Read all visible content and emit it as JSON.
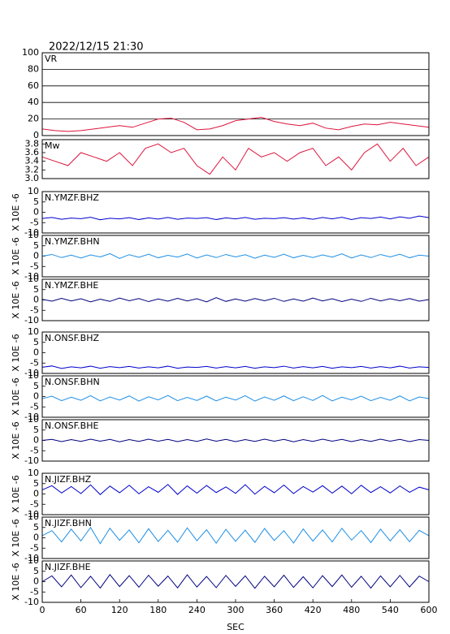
{
  "chart_data": [
    {
      "type": "line",
      "title": "2022/12/15 21:30",
      "label": "VR",
      "color": "#dc143c",
      "grid": true,
      "x": [
        0,
        20,
        40,
        60,
        80,
        100,
        120,
        140,
        160,
        180,
        200,
        220,
        240,
        260,
        280,
        300,
        320,
        340,
        360,
        380,
        400,
        420,
        440,
        460,
        480,
        500,
        520,
        540,
        560,
        580,
        600
      ],
      "values": [
        8,
        6,
        5,
        6,
        8,
        10,
        12,
        10,
        15,
        20,
        21,
        16,
        7,
        8,
        12,
        18,
        20,
        22,
        17,
        14,
        12,
        15,
        9,
        7,
        11,
        14,
        13,
        16,
        14,
        12,
        10
      ],
      "xlim": [
        0,
        600
      ],
      "ylim": [
        0,
        100
      ],
      "yticks": [
        0,
        20,
        40,
        60,
        80,
        100
      ]
    },
    {
      "type": "line",
      "label": "Mw",
      "color": "#dc143c",
      "x": [
        0,
        20,
        40,
        60,
        80,
        100,
        120,
        140,
        160,
        180,
        200,
        220,
        240,
        260,
        280,
        300,
        320,
        340,
        360,
        380,
        400,
        420,
        440,
        460,
        480,
        500,
        520,
        540,
        560,
        580,
        600
      ],
      "values": [
        3.5,
        3.4,
        3.3,
        3.6,
        3.5,
        3.4,
        3.6,
        3.3,
        3.7,
        3.8,
        3.6,
        3.7,
        3.3,
        3.1,
        3.5,
        3.2,
        3.7,
        3.5,
        3.6,
        3.4,
        3.6,
        3.7,
        3.3,
        3.5,
        3.2,
        3.6,
        3.8,
        3.4,
        3.7,
        3.3,
        3.5
      ],
      "xlim": [
        0,
        600
      ],
      "ylim": [
        3.0,
        3.9
      ],
      "yticks": [
        {
          "value": 3,
          "label": "3.0"
        },
        3.2,
        3.4,
        3.6,
        3.8
      ]
    },
    {
      "type": "line",
      "label": "N.YMZF.BHZ",
      "ylabel": "X 10E -6",
      "color": "#0000cd",
      "x": [
        0,
        15,
        30,
        45,
        60,
        75,
        90,
        105,
        120,
        135,
        150,
        165,
        180,
        195,
        210,
        225,
        240,
        255,
        270,
        285,
        300,
        315,
        330,
        345,
        360,
        375,
        390,
        405,
        420,
        435,
        450,
        465,
        480,
        495,
        510,
        525,
        540,
        555,
        570,
        585,
        600
      ],
      "values": [
        -3,
        -2.5,
        -3.4,
        -2.8,
        -3.1,
        -2.4,
        -3.6,
        -2.9,
        -3.2,
        -2.6,
        -3.5,
        -2.7,
        -3.3,
        -2.5,
        -3.4,
        -2.8,
        -3,
        -2.6,
        -3.5,
        -2.7,
        -3.2,
        -2.5,
        -3.4,
        -2.9,
        -3.1,
        -2.6,
        -3.3,
        -2.7,
        -3.4,
        -2.5,
        -3.2,
        -2.4,
        -3.5,
        -2.6,
        -3,
        -2.3,
        -3.2,
        -2.2,
        -2.9,
        -1.8,
        -2.6
      ],
      "xlim": [
        0,
        600
      ],
      "ylim": [
        -10,
        10
      ],
      "yticks": [
        -10,
        -5,
        0,
        5,
        10
      ]
    },
    {
      "type": "line",
      "label": "N.YMZF.BHN",
      "ylabel": "X 10E -6",
      "color": "#1e8fe6",
      "x": [
        0,
        15,
        30,
        45,
        60,
        75,
        90,
        105,
        120,
        135,
        150,
        165,
        180,
        195,
        210,
        225,
        240,
        255,
        270,
        285,
        300,
        315,
        330,
        345,
        360,
        375,
        390,
        405,
        420,
        435,
        450,
        465,
        480,
        495,
        510,
        525,
        540,
        555,
        570,
        585,
        600
      ],
      "values": [
        0,
        0.8,
        -0.7,
        0.5,
        -0.9,
        0.6,
        -0.4,
        1.2,
        -1.1,
        0.7,
        -0.6,
        0.9,
        -0.8,
        0.4,
        -0.5,
        1,
        -0.9,
        0.6,
        -0.7,
        0.8,
        -0.4,
        0.7,
        -1,
        0.5,
        -0.6,
        0.9,
        -0.8,
        0.4,
        -0.7,
        0.6,
        -0.5,
        1.1,
        -0.9,
        0.6,
        -0.7,
        0.8,
        -0.4,
        0.9,
        -0.8,
        0.5,
        0
      ],
      "xlim": [
        0,
        600
      ],
      "ylim": [
        -10,
        10
      ],
      "yticks": [
        -10,
        -5,
        0,
        5,
        10
      ]
    },
    {
      "type": "line",
      "label": "N.YMZF.BHE",
      "ylabel": "X 10E -6",
      "color": "#000080",
      "x": [
        0,
        15,
        30,
        45,
        60,
        75,
        90,
        105,
        120,
        135,
        150,
        165,
        180,
        195,
        210,
        225,
        240,
        255,
        270,
        285,
        300,
        315,
        330,
        345,
        360,
        375,
        390,
        405,
        420,
        435,
        450,
        465,
        480,
        495,
        510,
        525,
        540,
        555,
        570,
        585,
        600
      ],
      "values": [
        0.3,
        -0.6,
        0.8,
        -0.5,
        0.6,
        -0.9,
        0.4,
        -0.7,
        0.9,
        -0.4,
        0.7,
        -0.8,
        0.5,
        -0.6,
        0.8,
        -0.5,
        0.6,
        -0.9,
        1.1,
        -0.7,
        0.5,
        -0.6,
        0.7,
        -0.4,
        0.8,
        -0.7,
        0.5,
        -0.6,
        0.9,
        -0.5,
        0.6,
        -0.8,
        0.4,
        -0.7,
        0.8,
        -0.5,
        0.6,
        -0.4,
        0.7,
        -0.6,
        0.2
      ],
      "xlim": [
        0,
        600
      ],
      "ylim": [
        -10,
        10
      ],
      "yticks": [
        -10,
        -5,
        0,
        5,
        10
      ]
    },
    {
      "type": "line",
      "label": "N.ONSF.BHZ",
      "ylabel": "X 10E -6",
      "color": "#0000cd",
      "x": [
        0,
        15,
        30,
        45,
        60,
        75,
        90,
        105,
        120,
        135,
        150,
        165,
        180,
        195,
        210,
        225,
        240,
        255,
        270,
        285,
        300,
        315,
        330,
        345,
        360,
        375,
        390,
        405,
        420,
        435,
        450,
        465,
        480,
        495,
        510,
        525,
        540,
        555,
        570,
        585,
        600
      ],
      "values": [
        -7,
        -6.4,
        -7.6,
        -6.8,
        -7.3,
        -6.5,
        -7.5,
        -6.7,
        -7.2,
        -6.6,
        -7.4,
        -6.8,
        -7.3,
        -6.5,
        -7.5,
        -6.9,
        -7.1,
        -6.6,
        -7.4,
        -6.7,
        -7.3,
        -6.6,
        -7.5,
        -6.8,
        -7.2,
        -6.5,
        -7.4,
        -6.7,
        -7.3,
        -6.6,
        -7.5,
        -6.8,
        -7.2,
        -6.6,
        -7.4,
        -6.7,
        -7.3,
        -6.5,
        -7.4,
        -6.8,
        -7.1
      ],
      "xlim": [
        0,
        600
      ],
      "ylim": [
        -10,
        10
      ],
      "yticks": [
        -10,
        -5,
        0,
        5,
        10
      ]
    },
    {
      "type": "line",
      "label": "N.ONSF.BHN",
      "ylabel": "X 10E -6",
      "color": "#1e8fe6",
      "x": [
        0,
        15,
        30,
        45,
        60,
        75,
        90,
        105,
        120,
        135,
        150,
        165,
        180,
        195,
        210,
        225,
        240,
        255,
        270,
        285,
        300,
        315,
        330,
        345,
        360,
        375,
        390,
        405,
        420,
        435,
        450,
        465,
        480,
        495,
        510,
        525,
        540,
        555,
        570,
        585,
        600
      ],
      "values": [
        -1,
        0.2,
        -2,
        -0.3,
        -1.8,
        0.4,
        -2.1,
        -0.2,
        -1.7,
        0.3,
        -2.2,
        -0.1,
        -1.6,
        0.5,
        -2,
        -0.4,
        -1.9,
        0.2,
        -2.1,
        -0.3,
        -1.7,
        0.4,
        -2.2,
        -0.2,
        -1.8,
        0.3,
        -2,
        -0.1,
        -1.9,
        0.5,
        -2.1,
        -0.3,
        -1.6,
        0.2,
        -2,
        -0.4,
        -1.8,
        0.3,
        -2.1,
        -0.2,
        -1
      ],
      "xlim": [
        0,
        600
      ],
      "ylim": [
        -10,
        10
      ],
      "yticks": [
        -10,
        -5,
        0,
        5,
        10
      ]
    },
    {
      "type": "line",
      "label": "N.ONSF.BHE",
      "ylabel": "X 10E -6",
      "color": "#000080",
      "x": [
        0,
        15,
        30,
        45,
        60,
        75,
        90,
        105,
        120,
        135,
        150,
        165,
        180,
        195,
        210,
        225,
        240,
        255,
        270,
        285,
        300,
        315,
        330,
        345,
        360,
        375,
        390,
        405,
        420,
        435,
        450,
        465,
        480,
        495,
        510,
        525,
        540,
        555,
        570,
        585,
        600
      ],
      "values": [
        0,
        0.5,
        -0.6,
        0.4,
        -0.5,
        0.6,
        -0.4,
        0.5,
        -0.7,
        0.4,
        -0.5,
        0.6,
        -0.4,
        0.5,
        -0.6,
        0.4,
        -0.5,
        0.7,
        -0.4,
        0.5,
        -0.6,
        0.4,
        -0.5,
        0.6,
        -0.4,
        0.5,
        -0.7,
        0.4,
        -0.5,
        0.6,
        -0.4,
        0.5,
        -0.6,
        0.4,
        -0.5,
        0.6,
        -0.4,
        0.5,
        -0.6,
        0.4,
        0
      ],
      "xlim": [
        0,
        600
      ],
      "ylim": [
        -10,
        10
      ],
      "yticks": [
        -10,
        -5,
        0,
        5,
        10
      ]
    },
    {
      "type": "line",
      "label": "N.JIZF.BHZ",
      "ylabel": "X 10E -6",
      "color": "#0000cd",
      "x": [
        0,
        15,
        30,
        45,
        60,
        75,
        90,
        105,
        120,
        135,
        150,
        165,
        180,
        195,
        210,
        225,
        240,
        255,
        270,
        285,
        300,
        315,
        330,
        345,
        360,
        375,
        390,
        405,
        420,
        435,
        450,
        465,
        480,
        495,
        510,
        525,
        540,
        555,
        570,
        585,
        600
      ],
      "values": [
        2,
        4,
        0.5,
        3.6,
        0.2,
        4.4,
        -0.3,
        3.8,
        0.6,
        4.2,
        0.1,
        3.5,
        0.8,
        4.6,
        -0.2,
        3.9,
        0.4,
        4.1,
        0.7,
        3.4,
        0.3,
        4.5,
        -0.1,
        3.7,
        0.6,
        4.3,
        0.2,
        3.6,
        0.9,
        4,
        0.4,
        3.8,
        0.1,
        4.2,
        0.7,
        3.5,
        0.5,
        3.9,
        0.8,
        3.3,
        2
      ],
      "xlim": [
        0,
        600
      ],
      "ylim": [
        -10,
        10
      ],
      "yticks": [
        -10,
        -5,
        0,
        5,
        10
      ]
    },
    {
      "type": "line",
      "label": "N.JIZF.BHN",
      "ylabel": "X 10E -6",
      "color": "#1e8fe6",
      "x": [
        0,
        15,
        30,
        45,
        60,
        75,
        90,
        105,
        120,
        135,
        150,
        165,
        180,
        195,
        210,
        225,
        240,
        255,
        270,
        285,
        300,
        315,
        330,
        345,
        360,
        375,
        390,
        405,
        420,
        435,
        450,
        465,
        480,
        495,
        510,
        525,
        540,
        555,
        570,
        585,
        600
      ],
      "values": [
        1,
        3.5,
        -2,
        4.2,
        -1.5,
        5,
        -2.8,
        4.6,
        -1.2,
        3.8,
        -2.4,
        4.4,
        -1.8,
        3.6,
        -2.1,
        4.8,
        -1.4,
        3.9,
        -2.6,
        4.1,
        -1.7,
        3.7,
        -2.2,
        4.5,
        -1.3,
        3.4,
        -2.5,
        4.3,
        -1.6,
        3.8,
        -2,
        4.6,
        -1.1,
        3.5,
        -2.3,
        4.2,
        -1.5,
        3.9,
        -1.9,
        3.6,
        1
      ],
      "xlim": [
        0,
        600
      ],
      "ylim": [
        -10,
        10
      ],
      "yticks": [
        -10,
        -5,
        0,
        5,
        10
      ]
    },
    {
      "type": "line",
      "label": "N.JIZF.BHE",
      "ylabel": "X 10E -6",
      "xlabel": "SEC",
      "color": "#000080",
      "x": [
        0,
        15,
        30,
        45,
        60,
        75,
        90,
        105,
        120,
        135,
        150,
        165,
        180,
        195,
        210,
        225,
        240,
        255,
        270,
        285,
        300,
        315,
        330,
        345,
        360,
        375,
        390,
        405,
        420,
        435,
        450,
        465,
        480,
        495,
        510,
        525,
        540,
        555,
        570,
        585,
        600
      ],
      "values": [
        0,
        2.8,
        -2.5,
        3.2,
        -2.9,
        2.6,
        -3.1,
        3.4,
        -2.4,
        2.9,
        -2.7,
        3.1,
        -2.2,
        2.7,
        -3,
        3.3,
        -2.6,
        2.5,
        -2.9,
        3,
        -2.3,
        2.8,
        -3.2,
        2.6,
        -2.5,
        3.1,
        -2.8,
        2.4,
        -3,
        2.9,
        -2.4,
        3.2,
        -2.7,
        2.6,
        -3.1,
        2.8,
        -2.5,
        3,
        -2.6,
        2.7,
        0
      ],
      "xlim": [
        0,
        600
      ],
      "ylim": [
        -10,
        10
      ],
      "yticks": [
        -10,
        -5,
        0,
        5,
        10
      ],
      "xticks": [
        0,
        60,
        120,
        180,
        240,
        300,
        360,
        420,
        480,
        540,
        600
      ]
    }
  ]
}
